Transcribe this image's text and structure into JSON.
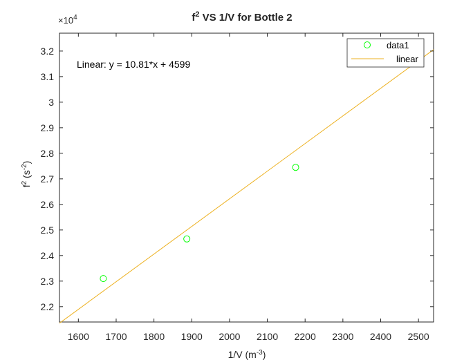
{
  "chart_data": {
    "type": "scatter",
    "title": "VS 1/V for Bottle 2",
    "title_prefix": "f",
    "title_sup": "2",
    "xlabel": "1/V (m",
    "xlabel_sup": "-3",
    "xlabel_suffix": ")",
    "ylabel_prefix": "f",
    "ylabel_sup": "2",
    "ylabel_suffix": " (s",
    "ylabel_sup2": "-2",
    "ylabel_end": ")",
    "y_multiplier_prefix": "×10",
    "y_multiplier_exp": "4",
    "xlim": [
      1550,
      2540
    ],
    "ylim": [
      21400,
      32700
    ],
    "x_ticks": [
      1600,
      1700,
      1800,
      1900,
      2000,
      2100,
      2200,
      2300,
      2400,
      2500
    ],
    "x_tick_labels": [
      "1600",
      "1700",
      "1800",
      "1900",
      "2000",
      "2100",
      "2200",
      "2300",
      "2400",
      "2500"
    ],
    "y_ticks": [
      22000,
      23000,
      24000,
      25000,
      26000,
      27000,
      28000,
      29000,
      30000,
      31000,
      32000
    ],
    "y_tick_labels": [
      "2.2",
      "2.3",
      "2.4",
      "2.5",
      "2.6",
      "2.7",
      "2.8",
      "2.9",
      "3",
      "3.1",
      "3.2"
    ],
    "grid": false,
    "legend_position": "top-right",
    "annotation": "Linear:  y = 10.81*x + 4599",
    "series": [
      {
        "name": "data1",
        "kind": "markers",
        "color": "#00ff00",
        "x": [
          1666,
          1887,
          2175
        ],
        "y": [
          23100,
          24650,
          27450
        ]
      },
      {
        "name": "linear",
        "kind": "line",
        "color": "#edb120",
        "slope": 10.81,
        "intercept": 4599
      }
    ]
  }
}
